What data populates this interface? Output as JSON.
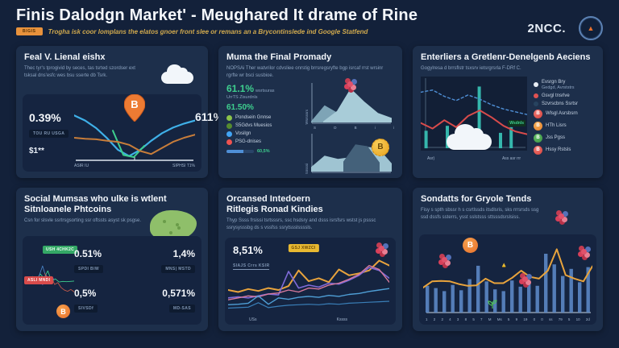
{
  "header": {
    "title": "Finis Dalodgn Market' - Meughared It drame of Rine",
    "badge": "BIGIS",
    "subtitle": "Trogha isk coor lomplans the elatos gnoer front slee or remans an a Brycontinslede ind Google Statfend",
    "logo": "2NCC."
  },
  "icons": {
    "bitcoin_letter": "B",
    "seal_triangle": "▲",
    "up_arrow": "▲"
  },
  "colors": {
    "background": "#13213a",
    "panel": "#1d2f4b",
    "card": "#152440",
    "accent_orange": "#e8702c",
    "accent_green": "#3ecf8e",
    "accent_gold": "#d0a94e",
    "bitcoin_gold": "#e8a21e"
  },
  "panels": {
    "p1": {
      "title": "Feal V. Lienal eishx",
      "desc": "Thec tyr's tprogivid by seces, tas tsrted szordser ext tsksal dns'esfc wes bsu sserte db Tsrk.",
      "stat_left": "0.39%",
      "stat_left_badge": "TOU RU USGA",
      "stat_left2": "$1**",
      "stat_right": "611%"
    },
    "p2": {
      "title": "Muma the Final Promady",
      "desc": "NOPSAi Ther watvrilor cdvsliee onrstig brrsregsryfte bgp isrcaf rrst wrsinr rgrfte wr bsci susbioe.",
      "stat1": "61.1%",
      "stat1_suffix": "wsrtsuras",
      "stat1_sub": "UrrTS Zisurdnls",
      "stat2": "61.50%",
      "legend": [
        {
          "color": "#8bc34a",
          "label": "Pondsein Gnnse"
        },
        {
          "color": "#558b2f",
          "label": "S5Gdvs Muesios"
        },
        {
          "color": "#42a5f5",
          "label": "Vosilgn"
        },
        {
          "color": "#ef5350",
          "label": "PSG-dnises"
        }
      ],
      "progress_label": "60,5%"
    },
    "p3": {
      "title": "Enterliers a Gretlenr-Denelgenb Aeciens",
      "desc": "Gogylresa d brrsflstr tsxsrv ietsrgrsrla F-DRf C.",
      "legend": [
        {
          "color": "#e8eef5",
          "label": "Evsrgn Bry",
          "sub": "Gedgd, Avrststrs"
        },
        {
          "color": "#e05252",
          "label": "Gsvgl tnsrlve"
        },
        {
          "color": "#27435f",
          "label": "Szvrscbns Ssrtsr"
        },
        {
          "color": "#e2554f",
          "label": "Wlsgl Asrsbsrn"
        },
        {
          "color": "#f09330",
          "label": "HTh Lisrs"
        },
        {
          "color": "#43a047",
          "label": "Jss Pgss"
        },
        {
          "color": "#e2554f",
          "label": "Hssy Rstsls"
        }
      ]
    },
    "p4": {
      "title_line1": "Social Mumsas who ulke is wtlent",
      "title_line2": "Sitnloanele Phtcoins",
      "desc": "Csn for slsvle ssrtrsgsorting ssr oftssts asyst sk psgse.",
      "stats": [
        {
          "value": "0.51%",
          "badge": "SPDI BIW"
        },
        {
          "value": "1,4%",
          "badge": "MNS| MSTD"
        },
        {
          "value": "0,5%",
          "badge": "SIVSDf"
        },
        {
          "value": "0,571%",
          "badge": "MD-SAS"
        }
      ],
      "tag_green": "USH 4CHK2C",
      "tag_red": "ASLI MNDI"
    },
    "p5": {
      "title_line1": "Orcansed Intedoern",
      "title_line2": "Ritlegis Ronad Kindies",
      "desc": "Thyp Ssss frsissi tsrtsssrs, ssc hsdsry and dsss isrsfsrs wstst js psssc ssrysysssbg ds s vssfss ssrytssslssssls.",
      "stat": "8,51%",
      "stat_badge": "SIAJS Crrs KSIR",
      "tag_yellow": "GSJ XWZCI"
    },
    "p6": {
      "title": "Sondatts for Gryole Tends",
      "desc": "Fisy s spth sbssr h s csrtlssds itsdlsris, sks rrrsrsds ssg ssd dssfs ssterrs, ysst sslstsss sttsssdsrslsiss."
    }
  },
  "chart_data": [
    {
      "name": "bitcoin-dip-recovery",
      "type": "line",
      "ymax": 10,
      "x_labels": [
        "ASIR IU",
        "SIPHSI T1%"
      ],
      "series": [
        {
          "name": "blue-price",
          "type": "line",
          "color": "#3fb0e8",
          "width": 2.2,
          "values": [
            9,
            8,
            6.5,
            4.5,
            2.2,
            1.0,
            2.2,
            4.0,
            5.5,
            6.6,
            7.4,
            8.0
          ]
        },
        {
          "name": "green-dip",
          "type": "line",
          "color": "#3ecf8e",
          "width": 2,
          "xstart": 0.32,
          "xend": 0.58,
          "values": [
            6,
            1.2,
            0.8,
            3
          ]
        },
        {
          "name": "orange-baseline",
          "type": "line",
          "color": "#c87d3a",
          "width": 2,
          "values": [
            4.6,
            4.4,
            4.3,
            4.0,
            3.8,
            3.2,
            2.0,
            1.4,
            2.6,
            3.8,
            4.6,
            5.2
          ]
        }
      ]
    },
    {
      "name": "mountain-peaks",
      "type": "area",
      "ymax": 10,
      "ylabel": "Wsrsssrs",
      "x_labels": [
        "S",
        "D",
        "B",
        "i",
        "i"
      ],
      "series": [
        {
          "name": "back-peak",
          "type": "area",
          "color": "#8fb8c9",
          "opacity": 0.85,
          "values": [
            0.3,
            4.5,
            2.5,
            1.5,
            0.5,
            0.3,
            0.2
          ]
        },
        {
          "name": "main-peak",
          "type": "area",
          "color": "#a8ccd8",
          "xstart": 0.15,
          "xend": 1,
          "values": [
            0.3,
            3,
            9,
            5.5,
            2.5,
            1.2
          ]
        }
      ]
    },
    {
      "name": "mountain-coin",
      "type": "area",
      "ymax": 8,
      "ylabel": "tsrsssi",
      "series": [
        {
          "name": "ridge",
          "type": "area",
          "color": "#9fc4d2",
          "values": [
            1,
            3.5,
            2.8,
            3.2,
            5.5,
            5.2,
            1.8
          ]
        },
        {
          "name": "dark-ridge",
          "type": "area",
          "color": "#44617a",
          "xstart": 0.4,
          "xend": 0.85,
          "values": [
            2.2,
            6.0,
            5.6,
            2.0
          ]
        }
      ]
    },
    {
      "name": "volatility-mixed",
      "type": "mixed",
      "ymax": 10,
      "x_labels": [
        "Asr)",
        "Ass asr rrr"
      ],
      "annotation": "Wsdnls",
      "series": [
        {
          "name": "teal-bars",
          "type": "bar",
          "color": "#35b6ac",
          "bw": 0.3,
          "values": [
            2.5,
            0,
            3.2,
            0,
            1.8,
            8.8,
            0,
            2.2,
            3.0,
            0
          ]
        },
        {
          "name": "blue-dashed",
          "type": "line",
          "color": "#4f8fd6",
          "width": 1.4,
          "dash": "3 3",
          "values": [
            8,
            8.3,
            7.4,
            6.8,
            7.6,
            7.0,
            6.2,
            5.6,
            5.2,
            4.8
          ]
        },
        {
          "name": "red-line",
          "type": "line",
          "color": "#d84b4b",
          "width": 2,
          "values": [
            3.6,
            2.8,
            4.0,
            3.0,
            4.6,
            5.4,
            4.4,
            3.2,
            2.4,
            2.0
          ]
        }
      ]
    },
    {
      "name": "social-sentiment-lines",
      "type": "line",
      "ymax": 10,
      "series": [
        {
          "name": "green",
          "type": "line",
          "color": "#3ecf8e",
          "width": 1.8,
          "values": [
            5.5,
            6.2,
            5.2,
            7.0,
            5.6,
            8.0,
            4.6,
            5.4,
            4.4,
            4.6,
            4.5,
            4.6,
            4.7
          ]
        },
        {
          "name": "blue-spike",
          "type": "line",
          "color": "#4f8fd6",
          "width": 1.6,
          "xstart": 0.18,
          "xend": 0.42,
          "values": [
            4.5,
            9.6,
            3.8
          ]
        },
        {
          "name": "purple",
          "type": "line",
          "color": "#9b6bd8",
          "width": 1.6,
          "xstart": 0.3,
          "xend": 0.55,
          "values": [
            3.5,
            6.5,
            4.0,
            5.5
          ]
        },
        {
          "name": "red-decline",
          "type": "line",
          "color": "#c65a4a",
          "width": 1.8,
          "xstart": 0.35,
          "xend": 1,
          "values": [
            7.2,
            5.0,
            6.2,
            3.6,
            4.2,
            2.6,
            1.8,
            1.4,
            2.0,
            1.2
          ]
        }
      ]
    },
    {
      "name": "ranked-kindies-lines",
      "type": "line",
      "ymax": 12,
      "x_labels": [
        "USs",
        "Kssss"
      ],
      "series": [
        {
          "name": "orange",
          "type": "line",
          "color": "#e8a33c",
          "width": 2,
          "values": [
            4.6,
            4.2,
            4.8,
            4.4,
            5.0,
            4.6,
            5.4,
            8.6,
            6.4,
            7.0,
            6.2,
            8.8,
            7.6,
            8.0,
            8.6,
            10.6,
            9.6
          ]
        },
        {
          "name": "purple",
          "type": "line",
          "color": "#7e6bd8",
          "width": 1.6,
          "values": [
            3.0,
            3.2,
            3.0,
            3.4,
            3.8,
            3.6,
            8.4,
            5.0,
            5.6,
            5.2,
            6.0,
            5.8,
            6.6,
            7.6,
            9.2,
            8.6,
            7.0
          ]
        },
        {
          "name": "pink",
          "type": "line",
          "color": "#d87a9c",
          "width": 1.4,
          "values": [
            2.6,
            3.0,
            3.4,
            3.2,
            3.8,
            4.0,
            4.6,
            4.2,
            5.0,
            4.8,
            5.6,
            6.0,
            6.8,
            7.8,
            9.6,
            8.8,
            6.2
          ]
        },
        {
          "name": "blue",
          "type": "line",
          "color": "#4f9fd6",
          "width": 1.4,
          "values": [
            1.6,
            1.7,
            1.9,
            3.4,
            1.7,
            3.0,
            2.7,
            3.1,
            3.3,
            3.1,
            3.5,
            3.3,
            3.7,
            3.9,
            4.3,
            4.6,
            4.9
          ]
        },
        {
          "name": "light-blue",
          "type": "line",
          "color": "#3a7fb8",
          "width": 1.2,
          "values": [
            0.9,
            1.0,
            1.1,
            2.0,
            1.0,
            1.3,
            1.5,
            1.6,
            1.7,
            1.6,
            1.8,
            1.7,
            1.9,
            2.0,
            2.1,
            2.2,
            2.3
          ]
        }
      ]
    },
    {
      "name": "google-trends-bars",
      "type": "bar",
      "ymax": 15,
      "x_labels": [
        "1",
        "2",
        "2",
        "4",
        "3",
        "8",
        "5",
        "7",
        "M",
        "Ms",
        "5",
        "9",
        "19",
        "0",
        "0",
        "ss",
        "79",
        "5",
        "10",
        "2d"
      ],
      "series": [
        {
          "name": "volume-bars",
          "type": "bar",
          "color": "#5b87c5",
          "bw": 0.42,
          "opacity": 0.9,
          "values": [
            6,
            5.5,
            4.8,
            6.2,
            5,
            7.5,
            10.5,
            7,
            5.2,
            4.8,
            7.2,
            5.8,
            6.6,
            6,
            13.2,
            10.8,
            8.2,
            9.8,
            6.8,
            10.2
          ]
        },
        {
          "name": "trend-line",
          "type": "line",
          "color": "#e8a33c",
          "width": 2,
          "values": [
            5.6,
            7.0,
            7.1,
            7.0,
            6.4,
            6.0,
            6.1,
            7.6,
            6.6,
            6.6,
            7.8,
            9.4,
            8.0,
            7.6,
            9.4,
            14.2,
            8.4,
            7.6,
            7.0,
            10.4
          ]
        }
      ]
    }
  ]
}
